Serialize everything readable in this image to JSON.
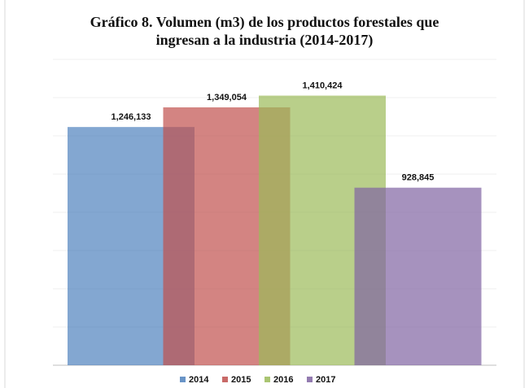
{
  "chart_data": {
    "type": "bar",
    "title": "Gráfico 8. Volumen (m3) de los productos forestales que\ningresan a la industria (2014-2017)",
    "series": [
      {
        "name": "2014",
        "color": "#4f81bd",
        "values": [
          1246133
        ],
        "value_labels": [
          "1,246,133"
        ]
      },
      {
        "name": "2015",
        "color": "#c0504d",
        "values": [
          1349054
        ],
        "value_labels": [
          "1,349,054"
        ]
      },
      {
        "name": "2016",
        "color": "#9bbb59",
        "values": [
          1410424
        ],
        "value_labels": [
          "1,410,424"
        ]
      },
      {
        "name": "2017",
        "color": "#8064a2",
        "values": [
          928845
        ],
        "value_labels": [
          "928,845"
        ]
      }
    ],
    "ylim": [
      0,
      1600000
    ],
    "yticks": [
      0,
      200000,
      400000,
      600000,
      800000,
      1000000,
      1200000,
      1400000,
      1600000
    ],
    "grid": true,
    "legend": "bottom"
  }
}
